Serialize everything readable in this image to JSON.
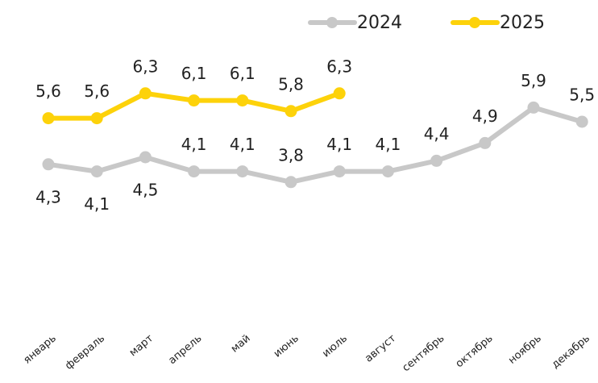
{
  "chart_data": {
    "type": "line",
    "categories": [
      "январь",
      "февраль",
      "март",
      "апрель",
      "май",
      "июнь",
      "июль",
      "август",
      "сентябрь",
      "октябрь",
      "ноябрь",
      "декабрь"
    ],
    "series": [
      {
        "name": "2024",
        "color": "#c8c8c8",
        "values": [
          4.3,
          4.1,
          4.5,
          4.1,
          4.1,
          3.8,
          4.1,
          4.1,
          4.4,
          4.9,
          5.9,
          5.5
        ],
        "value_labels": [
          "4,3",
          "4,1",
          "4,5",
          "4,1",
          "4,1",
          "3,8",
          "4,1",
          "4,1",
          "4,4",
          "4,9",
          "5,9",
          "5,5"
        ]
      },
      {
        "name": "2025",
        "color": "#fdd20a",
        "values": [
          5.6,
          5.6,
          6.3,
          6.1,
          6.1,
          5.8,
          6.3,
          null,
          null,
          null,
          null,
          null
        ],
        "value_labels": [
          "5,6",
          "5,6",
          "6,3",
          "6,1",
          "6,1",
          "5,8",
          "6,3",
          null,
          null,
          null,
          null,
          null
        ]
      }
    ]
  }
}
